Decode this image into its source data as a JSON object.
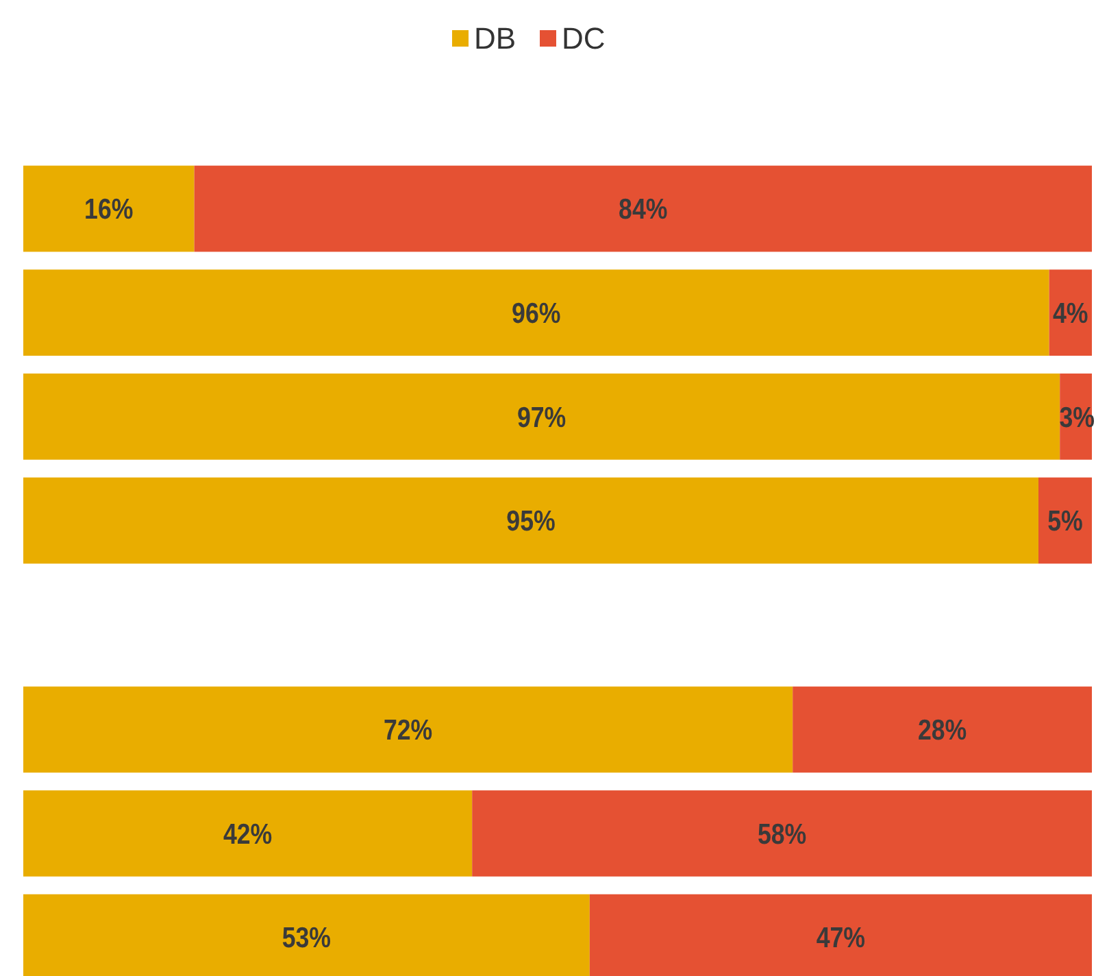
{
  "chart_data": [
    {
      "type": "bar",
      "orientation": "horizontal",
      "stacked": true,
      "legend": "top",
      "categories": [
        null,
        null,
        null,
        null
      ],
      "series": [
        {
          "name": "DB",
          "color": "#e9ad00",
          "values": [
            16,
            96,
            97,
            95
          ],
          "value_labels": [
            "16%",
            "96%",
            "97%",
            "95%"
          ]
        },
        {
          "name": "DC",
          "color": "#e55133",
          "values": [
            84,
            4,
            3,
            5
          ],
          "value_labels": [
            "84%",
            "4%",
            "3%",
            "5%"
          ]
        }
      ]
    },
    {
      "type": "bar",
      "orientation": "horizontal",
      "stacked": true,
      "categories": [
        null,
        null,
        null
      ],
      "series": [
        {
          "color": "#e9ad00",
          "values": [
            72,
            42,
            53
          ],
          "value_labels": [
            "72%",
            "42%",
            "53%"
          ]
        },
        {
          "color": "#e55133",
          "values": [
            28,
            58,
            47
          ],
          "value_labels": [
            "28%",
            "58%",
            "47%"
          ]
        }
      ]
    }
  ]
}
